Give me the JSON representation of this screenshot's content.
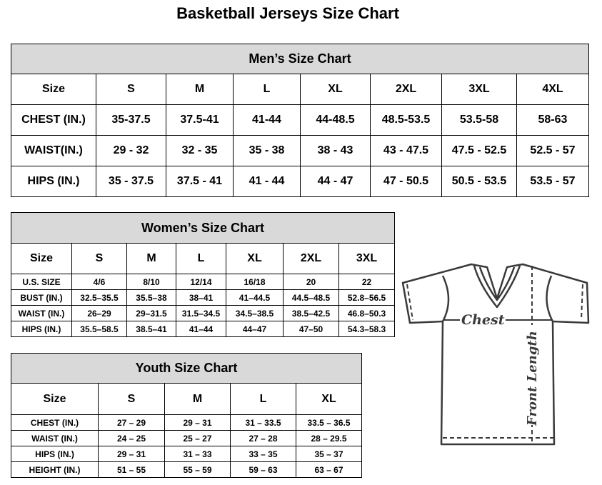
{
  "title": "Basketball Jerseys Size Chart",
  "men": {
    "title": "Men’s Size Chart",
    "header": [
      "Size",
      "S",
      "M",
      "L",
      "XL",
      "2XL",
      "3XL",
      "4XL"
    ],
    "rows": [
      [
        "CHEST (IN.)",
        "35-37.5",
        "37.5-41",
        "41-44",
        "44-48.5",
        "48.5-53.5",
        "53.5-58",
        "58-63"
      ],
      [
        "WAIST(IN.)",
        "29 - 32",
        "32 - 35",
        "35 - 38",
        "38 - 43",
        "43 - 47.5",
        "47.5 - 52.5",
        "52.5 - 57"
      ],
      [
        "HIPS (IN.)",
        "35 - 37.5",
        "37.5 - 41",
        "41 - 44",
        "44 - 47",
        "47 - 50.5",
        "50.5 - 53.5",
        "53.5 - 57"
      ]
    ]
  },
  "women": {
    "title": "Women’s Size Chart",
    "header": [
      "Size",
      "S",
      "M",
      "L",
      "XL",
      "2XL",
      "3XL"
    ],
    "rows": [
      [
        "U.S. SIZE",
        "4/6",
        "8/10",
        "12/14",
        "16/18",
        "20",
        "22"
      ],
      [
        "BUST (IN.)",
        "32.5–35.5",
        "35.5–38",
        "38–41",
        "41–44.5",
        "44.5–48.5",
        "52.8–56.5"
      ],
      [
        "WAIST (IN.)",
        "26–29",
        "29–31.5",
        "31.5–34.5",
        "34.5–38.5",
        "38.5–42.5",
        "46.8–50.3"
      ],
      [
        "HIPS (IN.)",
        "35.5–58.5",
        "38.5–41",
        "41–44",
        "44–47",
        "47–50",
        "54.3–58.3"
      ]
    ]
  },
  "youth": {
    "title": "Youth Size Chart",
    "header": [
      "Size",
      "S",
      "M",
      "L",
      "XL"
    ],
    "rows": [
      [
        "CHEST (IN.)",
        "27 – 29",
        "29 – 31",
        "31 – 33.5",
        "33.5 – 36.5"
      ],
      [
        "WAIST (IN.)",
        "24 – 25",
        "25 – 27",
        "27 – 28",
        "28 – 29.5"
      ],
      [
        "HIPS (IN.)",
        "29 – 31",
        "31 – 33",
        "33 – 35",
        "35 – 37"
      ],
      [
        "HEIGHT (IN.)",
        "51 – 55",
        "55 – 59",
        "59 – 63",
        "63 – 67"
      ]
    ]
  },
  "diagram": {
    "chest_label": "Chest",
    "length_label": "Front Length"
  },
  "colors": {
    "header_bg": "#d9d9d9",
    "shirt_stroke": "#3a3a3a"
  }
}
